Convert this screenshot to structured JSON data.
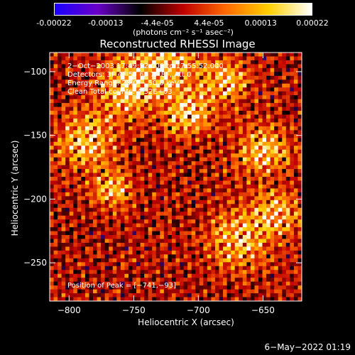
{
  "colorbar": {
    "ticks": [
      "-0.00022",
      "-0.00013",
      "-4.4e-05",
      "4.4e-05",
      "0.00013",
      "0.00022"
    ],
    "units": "(photons cm⁻² s⁻¹ asec⁻²)",
    "range": [
      -0.00022,
      0.00022
    ],
    "colors": [
      "#1a00ff",
      "#6a00c8",
      "#000000",
      "#c00000",
      "#ff6a00",
      "#ffd000",
      "#ffffff"
    ]
  },
  "chart_data": {
    "type": "heatmap",
    "title": "Reconstructed RHESSI Image",
    "xlabel": "Heliocentric X (arcsec)",
    "ylabel": "Heliocentric Y (arcsec)",
    "xlim": [
      -815,
      -620
    ],
    "ylim": [
      -280,
      -85
    ],
    "xticks": [
      -800,
      -750,
      -700,
      -650
    ],
    "yticks": [
      -100,
      -150,
      -200,
      -250
    ],
    "xtick_labels": [
      "−800",
      "−750",
      "−700",
      "−650"
    ],
    "ytick_labels": [
      "−100",
      "−150",
      "−200",
      "−250"
    ],
    "annotations": {
      "time": "2−Oct−2003 17:49:52.000 to 17:55:52.000",
      "detectors": "Detectors: 3F 4F 5F 6F 7F 8F, Att 0",
      "energy": "Energy Range: 25.0 − 50.0 keV",
      "method": "Clean     Total counts: 4.32E+03",
      "peak": "Position of Peak = [−741,−93]"
    },
    "peak": [
      -741,
      -93
    ]
  },
  "footer": "6−May−2022 01:19"
}
